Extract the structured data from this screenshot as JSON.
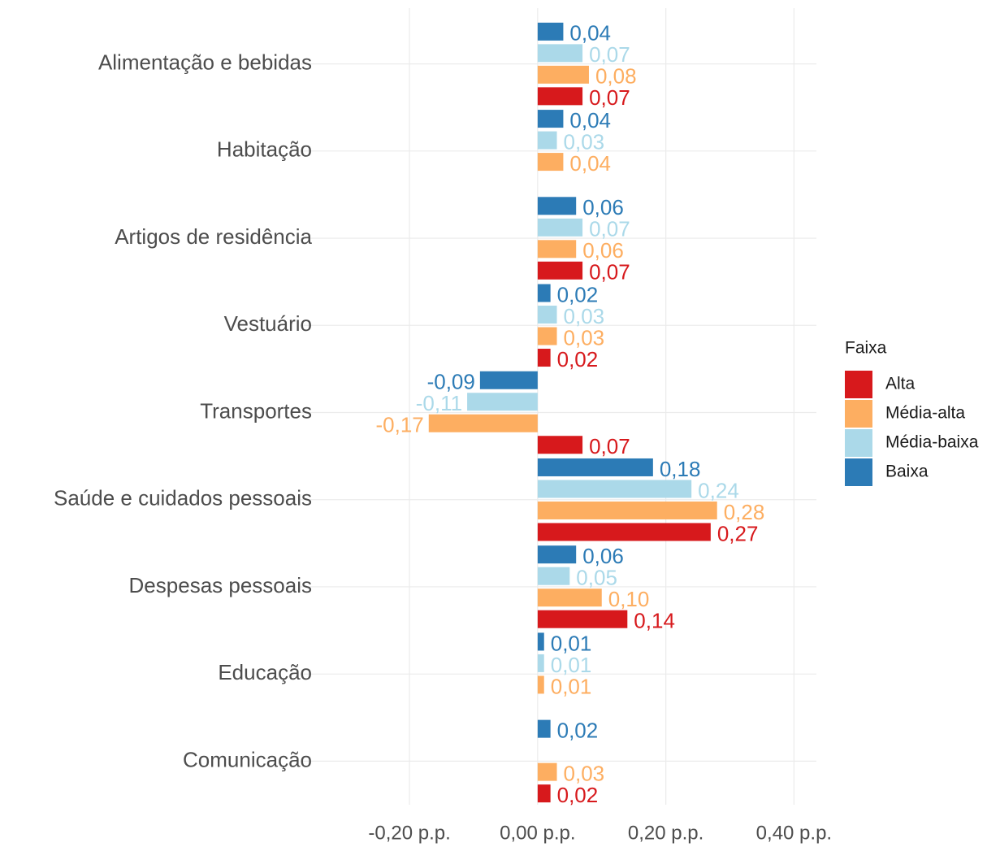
{
  "chart_data": {
    "type": "bar",
    "orientation": "horizontal",
    "categories": [
      "Alimentação e bebidas",
      "Habitação",
      "Artigos de residência",
      "Vestuário",
      "Transportes",
      "Saúde e cuidados pessoais",
      "Despesas pessoais",
      "Educação",
      "Comunicação"
    ],
    "series": [
      {
        "name": "Alta",
        "color": "#d7191c",
        "values": [
          0.07,
          null,
          0.07,
          0.02,
          0.07,
          0.27,
          0.14,
          null,
          0.02
        ],
        "value_labels": [
          "0,07",
          null,
          "0,07",
          "0,02",
          "0,07",
          "0,27",
          "0,14",
          null,
          "0,02"
        ]
      },
      {
        "name": "Média-alta",
        "color": "#fdae61",
        "values": [
          0.08,
          0.04,
          0.06,
          0.03,
          -0.17,
          0.28,
          0.1,
          0.01,
          0.03
        ],
        "value_labels": [
          "0,08",
          "0,04",
          "0,06",
          "0,03",
          "-0,17",
          "0,28",
          "0,10",
          "0,01",
          "0,03"
        ]
      },
      {
        "name": "Média-baixa",
        "color": "#abd9e9",
        "values": [
          0.07,
          0.03,
          0.07,
          0.03,
          -0.11,
          0.24,
          0.05,
          0.01,
          null
        ],
        "value_labels": [
          "0,07",
          "0,03",
          "0,07",
          "0,03",
          "-0,11",
          "0,24",
          "0,05",
          "0,01",
          null
        ]
      },
      {
        "name": "Baixa",
        "color": "#2c7bb6",
        "values": [
          0.04,
          0.04,
          0.06,
          0.02,
          -0.09,
          0.18,
          0.06,
          0.01,
          0.02
        ],
        "value_labels": [
          "0,04",
          "0,04",
          "0,06",
          "0,02",
          "-0,09",
          "0,18",
          "0,06",
          "0,01",
          "0,02"
        ]
      }
    ],
    "legend_title": "Faixa",
    "legend": "right",
    "grid": true,
    "xlim": [
      -0.37,
      0.435
    ],
    "xticks": [
      {
        "value": -0.2,
        "label": "-0,20 p.p."
      },
      {
        "value": 0,
        "label": "0,00 p.p."
      },
      {
        "value": 0.2,
        "label": "0,20 p.p."
      },
      {
        "value": 0.4,
        "label": "0,40 p.p."
      }
    ]
  }
}
